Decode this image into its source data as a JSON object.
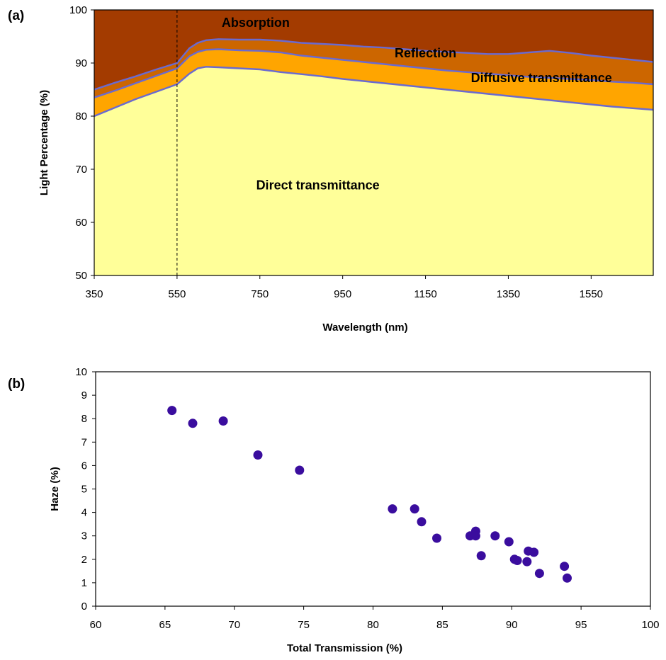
{
  "chart_data": [
    {
      "panel": "(a)",
      "type": "area",
      "xlabel": "Wavelength (nm)",
      "ylabel": "Light Percentage (%)",
      "xlim": [
        350,
        1700
      ],
      "ylim": [
        50,
        100
      ],
      "xticks": [
        350,
        550,
        750,
        950,
        1150,
        1350,
        1550
      ],
      "yticks": [
        50,
        60,
        70,
        80,
        90,
        100
      ],
      "vline_x": 550,
      "x": [
        350,
        400,
        450,
        500,
        550,
        580,
        600,
        620,
        650,
        700,
        750,
        800,
        850,
        900,
        950,
        1000,
        1050,
        1100,
        1150,
        1200,
        1250,
        1300,
        1350,
        1400,
        1450,
        1500,
        1550,
        1600,
        1650,
        1700
      ],
      "series": [
        {
          "name": "Direct transmittance",
          "color": "#ffff99",
          "values": [
            80.0,
            81.6,
            83.2,
            84.6,
            86.0,
            88.0,
            89.0,
            89.3,
            89.2,
            89.0,
            88.8,
            88.3,
            87.9,
            87.5,
            87.0,
            86.6,
            86.2,
            85.8,
            85.4,
            85.0,
            84.6,
            84.2,
            83.8,
            83.4,
            83.0,
            82.6,
            82.2,
            81.8,
            81.5,
            81.2
          ]
        },
        {
          "name": "Diffusive transmittance",
          "color": "#ffa500",
          "values": [
            83.5,
            84.8,
            86.2,
            87.6,
            89.0,
            91.3,
            92.1,
            92.5,
            92.6,
            92.4,
            92.3,
            92.0,
            91.4,
            91.0,
            90.6,
            90.2,
            89.8,
            89.4,
            89.0,
            88.6,
            88.3,
            88.0,
            87.7,
            87.4,
            87.2,
            87.0,
            86.8,
            86.5,
            86.3,
            86.0
          ]
        },
        {
          "name": "Reflection",
          "color": "#cc6600",
          "values": [
            85.0,
            86.3,
            87.5,
            88.8,
            90.0,
            92.8,
            93.8,
            94.3,
            94.5,
            94.4,
            94.4,
            94.2,
            93.8,
            93.6,
            93.4,
            93.1,
            92.9,
            92.6,
            92.3,
            92.1,
            91.9,
            91.7,
            91.7,
            92.0,
            92.3,
            91.9,
            91.4,
            91.0,
            90.6,
            90.2
          ]
        },
        {
          "name": "Absorption",
          "color": "#a33b00",
          "values": [
            100,
            100,
            100,
            100,
            100,
            100,
            100,
            100,
            100,
            100,
            100,
            100,
            100,
            100,
            100,
            100,
            100,
            100,
            100,
            100,
            100,
            100,
            100,
            100,
            100,
            100,
            100,
            100,
            100,
            100
          ]
        }
      ],
      "labels": [
        {
          "text": "Absorption",
          "x": 740,
          "y": 96.8
        },
        {
          "text": "Reflection",
          "x": 1150,
          "y": 91.1
        },
        {
          "text": "Diffusive transmittance",
          "x": 1430,
          "y": 86.4
        },
        {
          "text": "Direct transmittance",
          "x": 890,
          "y": 66.2
        }
      ]
    },
    {
      "panel": "(b)",
      "type": "scatter",
      "xlabel": "Total Transmission (%)",
      "ylabel": "Haze (%)",
      "xlim": [
        60,
        100
      ],
      "ylim": [
        0,
        10
      ],
      "xticks": [
        60,
        65,
        70,
        75,
        80,
        85,
        90,
        95,
        100
      ],
      "yticks": [
        0,
        1,
        2,
        3,
        4,
        5,
        6,
        7,
        8,
        9,
        10
      ],
      "marker_color": "#3a0d9e",
      "x": [
        65.5,
        67.0,
        69.2,
        71.7,
        74.7,
        81.4,
        83.0,
        83.5,
        84.6,
        87.0,
        87.4,
        87.4,
        87.8,
        88.8,
        89.8,
        90.2,
        90.4,
        91.1,
        91.2,
        91.6,
        92.0,
        93.8,
        94.0
      ],
      "y": [
        8.35,
        7.8,
        7.9,
        6.45,
        5.8,
        4.15,
        4.15,
        3.6,
        2.9,
        3.0,
        3.2,
        3.0,
        2.15,
        3.0,
        2.75,
        2.0,
        1.95,
        1.9,
        2.35,
        2.3,
        1.4,
        1.7,
        1.2
      ]
    }
  ]
}
